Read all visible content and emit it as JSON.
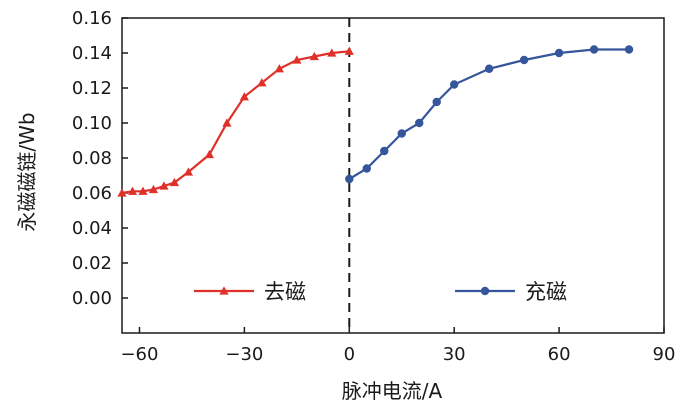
{
  "chart_data": {
    "type": "line",
    "xlabel": "脉冲电流/A",
    "ylabel": "永磁磁链/Wb",
    "xlim": [
      -65,
      90
    ],
    "ylim": [
      -0.02,
      0.16
    ],
    "xticks": [
      -60,
      -30,
      0,
      30,
      60,
      90
    ],
    "xtick_labels": [
      "−60",
      "−30",
      "0",
      "30",
      "60",
      "90"
    ],
    "yticks": [
      0.0,
      0.02,
      0.04,
      0.06,
      0.08,
      0.1,
      0.12,
      0.14,
      0.16
    ],
    "ytick_labels": [
      "0.00",
      "0.02",
      "0.04",
      "0.06",
      "0.08",
      "0.10",
      "0.12",
      "0.14",
      "0.16"
    ],
    "grid": false,
    "vline_x": 0,
    "legend_position": "bottom",
    "series": [
      {
        "name": "去磁",
        "color": "#e0302a",
        "marker": "triangle",
        "x": [
          -65,
          -62,
          -59,
          -56,
          -53,
          -50,
          -46,
          -40,
          -35,
          -30,
          -25,
          -20,
          -15,
          -10,
          -5,
          0
        ],
        "y": [
          0.06,
          0.061,
          0.061,
          0.062,
          0.064,
          0.066,
          0.072,
          0.082,
          0.1,
          0.115,
          0.123,
          0.131,
          0.136,
          0.138,
          0.14,
          0.141
        ]
      },
      {
        "name": "充磁",
        "color": "#35569a",
        "marker": "circle",
        "x": [
          0,
          5,
          10,
          15,
          20,
          25,
          30,
          40,
          50,
          60,
          70,
          80
        ],
        "y": [
          0.068,
          0.074,
          0.084,
          0.094,
          0.1,
          0.112,
          0.122,
          0.131,
          0.136,
          0.14,
          0.142,
          0.142
        ]
      }
    ]
  }
}
